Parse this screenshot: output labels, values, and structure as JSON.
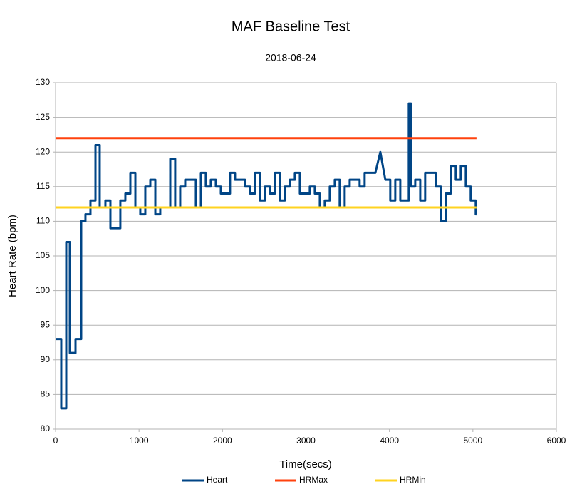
{
  "chart_data": {
    "type": "line",
    "title": "MAF Baseline Test",
    "subtitle": "2018-06-24",
    "x_label": "Time(secs)",
    "y_label": "Heart Rate (bpm)",
    "xlim": [
      0,
      6000
    ],
    "xticks": [
      0,
      1000,
      2000,
      3000,
      4000,
      5000,
      6000
    ],
    "ylim": [
      80,
      130
    ],
    "yticks": [
      80,
      85,
      90,
      95,
      100,
      105,
      110,
      115,
      120,
      125,
      130
    ],
    "grid": true,
    "legend": "bottom",
    "series": [
      {
        "name": "Heart",
        "color": "#004586",
        "x": [
          0,
          68,
          68,
          128,
          128,
          171,
          171,
          239,
          239,
          307,
          307,
          358,
          358,
          418,
          418,
          478,
          478,
          529,
          529,
          597,
          597,
          657,
          657,
          776,
          776,
          836,
          836,
          896,
          896,
          956,
          956,
          1015,
          1015,
          1075,
          1075,
          1135,
          1135,
          1195,
          1195,
          1254,
          1254,
          1374,
          1374,
          1433,
          1433,
          1493,
          1493,
          1553,
          1553,
          1681,
          1681,
          1741,
          1741,
          1800,
          1800,
          1860,
          1860,
          1920,
          1920,
          1980,
          1980,
          2090,
          2090,
          2150,
          2150,
          2270,
          2270,
          2330,
          2330,
          2389,
          2389,
          2449,
          2449,
          2509,
          2509,
          2568,
          2568,
          2628,
          2628,
          2688,
          2688,
          2747,
          2747,
          2807,
          2807,
          2867,
          2867,
          2927,
          2927,
          3046,
          3046,
          3106,
          3106,
          3166,
          3166,
          3225,
          3225,
          3285,
          3285,
          3345,
          3345,
          3404,
          3404,
          3464,
          3464,
          3524,
          3524,
          3643,
          3643,
          3703,
          3703,
          3831,
          3891,
          3951,
          4010,
          4010,
          4070,
          4070,
          4130,
          4130,
          4232,
          4232,
          4258,
          4258,
          4309,
          4309,
          4369,
          4369,
          4428,
          4428,
          4556,
          4556,
          4616,
          4616,
          4676,
          4676,
          4735,
          4735,
          4795,
          4795,
          4855,
          4855,
          4915,
          4915,
          4974,
          4974,
          5034,
          5034,
          5043
        ],
        "values": [
          93,
          93,
          83,
          83,
          107,
          107,
          91,
          91,
          93,
          93,
          110,
          110,
          111,
          111,
          113,
          113,
          121,
          121,
          112,
          112,
          113,
          113,
          109,
          109,
          113,
          113,
          114,
          114,
          117,
          117,
          112,
          112,
          111,
          111,
          115,
          115,
          116,
          116,
          111,
          111,
          112,
          112,
          119,
          119,
          112,
          112,
          115,
          115,
          116,
          116,
          112,
          112,
          117,
          117,
          115,
          115,
          116,
          116,
          115,
          115,
          114,
          114,
          117,
          117,
          116,
          116,
          115,
          115,
          114,
          114,
          117,
          117,
          113,
          113,
          115,
          115,
          114,
          114,
          117,
          117,
          113,
          113,
          115,
          115,
          116,
          116,
          117,
          117,
          114,
          114,
          115,
          115,
          114,
          114,
          112,
          112,
          113,
          113,
          115,
          115,
          116,
          116,
          112,
          112,
          115,
          115,
          116,
          116,
          115,
          115,
          117,
          117,
          120,
          116,
          116,
          113,
          113,
          116,
          116,
          113,
          113,
          127,
          127,
          115,
          115,
          116,
          116,
          113,
          113,
          117,
          117,
          115,
          115,
          110,
          110,
          114,
          114,
          118,
          118,
          116,
          116,
          118,
          118,
          115,
          115,
          113,
          113,
          111,
          111
        ]
      },
      {
        "name": "HRMax",
        "color": "#ff420e",
        "x": [
          0,
          5043
        ],
        "values": [
          122,
          122
        ]
      },
      {
        "name": "HRMin",
        "color": "#ffd320",
        "x": [
          0,
          5043
        ],
        "values": [
          112,
          112
        ]
      }
    ]
  }
}
